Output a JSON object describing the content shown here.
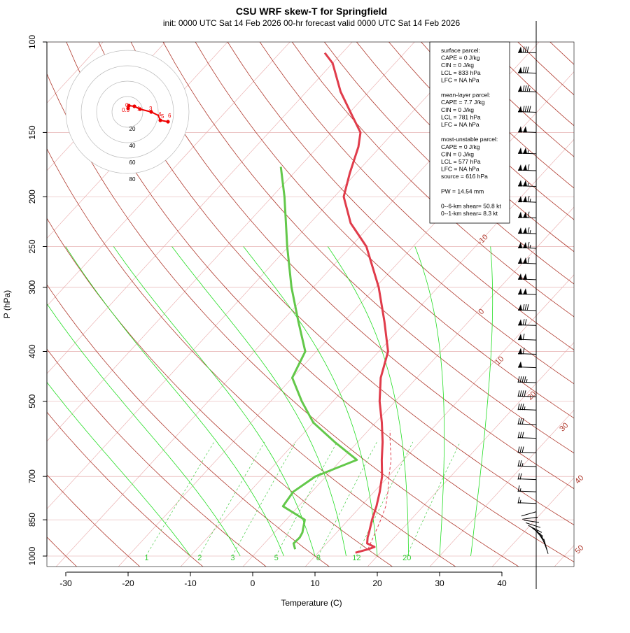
{
  "title": "CSU WRF skew-T for Springfield",
  "subtitle": "init: 0000 UTC Sat 14 Feb 2026     00-hr forecast valid 0000 UTC Sat 14 Feb 2026",
  "chart_data": {
    "type": "skew-t",
    "xlabel": "Temperature (C)",
    "ylabel": "P (hPa)",
    "xlim": [
      -33,
      44
    ],
    "ylim": [
      1000,
      100
    ],
    "y_scale": "log",
    "x_ticks": [
      "-30",
      "-20",
      "-10",
      "0",
      "10",
      "20",
      "30",
      "40"
    ],
    "y_ticks": [
      "100",
      "150",
      "200",
      "250",
      "300",
      "400",
      "500",
      "700",
      "850",
      "1000"
    ],
    "isotherm_labels": [
      "-10",
      "0",
      "10",
      "20",
      "30",
      "40",
      "50"
    ],
    "mixing_ratio_labels": [
      "1",
      "2",
      "3",
      "5",
      "8",
      "12",
      "20"
    ],
    "colors": {
      "temperature": "#e03c4b",
      "dewpoint": "#63c84a",
      "dry_adiabat": "#b03a2e",
      "isotherm": "#e8a8a8",
      "isobar": "#e0a0a0",
      "moist_adiabat": "#22dd22",
      "mixing_ratio": "#44cc44",
      "parcel": "#e03c4b",
      "hodograph": "#ee0000"
    },
    "series": [
      {
        "points": [
          {
            "p": 985,
            "t": 16.0
          },
          {
            "p": 970,
            "t": 17.5
          },
          {
            "p": 960,
            "t": 18.2
          },
          {
            "p": 945,
            "t": 16.5
          },
          {
            "p": 920,
            "t": 15.7
          },
          {
            "p": 900,
            "t": 15.2
          },
          {
            "p": 850,
            "t": 13.8
          },
          {
            "p": 800,
            "t": 12.5
          },
          {
            "p": 750,
            "t": 10.9
          },
          {
            "p": 700,
            "t": 9.0
          },
          {
            "p": 650,
            "t": 6.5
          },
          {
            "p": 600,
            "t": 4.0
          },
          {
            "p": 550,
            "t": 1.0
          },
          {
            "p": 500,
            "t": -2.5
          },
          {
            "p": 450,
            "t": -5.8
          },
          {
            "p": 400,
            "t": -8.5
          },
          {
            "p": 350,
            "t": -13.5
          },
          {
            "p": 300,
            "t": -19.5
          },
          {
            "p": 250,
            "t": -27.5
          },
          {
            "p": 225,
            "t": -33.5
          },
          {
            "p": 200,
            "t": -38.5
          },
          {
            "p": 180,
            "t": -41.0
          },
          {
            "p": 160,
            "t": -43.5
          },
          {
            "p": 150,
            "t": -45.3
          },
          {
            "p": 140,
            "t": -48.8
          },
          {
            "p": 125,
            "t": -54.5
          },
          {
            "p": 110,
            "t": -60.0
          },
          {
            "p": 105,
            "t": -62.8
          }
        ]
      },
      {
        "points": [
          {
            "p": 970,
            "t": 5.8
          },
          {
            "p": 945,
            "t": 4.7
          },
          {
            "p": 920,
            "t": 4.8
          },
          {
            "p": 900,
            "t": 4.5
          },
          {
            "p": 850,
            "t": 3.0
          },
          {
            "p": 800,
            "t": -2.5
          },
          {
            "p": 750,
            "t": -3.0
          },
          {
            "p": 700,
            "t": -1.7
          },
          {
            "p": 650,
            "t": 2.5
          },
          {
            "p": 600,
            "t": -3.7
          },
          {
            "p": 550,
            "t": -10.0
          },
          {
            "p": 500,
            "t": -15.0
          },
          {
            "p": 450,
            "t": -20.0
          },
          {
            "p": 400,
            "t": -21.8
          },
          {
            "p": 350,
            "t": -27.3
          },
          {
            "p": 300,
            "t": -33.5
          },
          {
            "p": 250,
            "t": -40.2
          },
          {
            "p": 200,
            "t": -48.0
          },
          {
            "p": 175,
            "t": -53.0
          }
        ]
      }
    ],
    "parcel_path": [
      {
        "p": 970,
        "t": 17.5
      },
      {
        "p": 900,
        "t": 16.2
      },
      {
        "p": 850,
        "t": 15.2
      },
      {
        "p": 800,
        "t": 14.0
      },
      {
        "p": 750,
        "t": 12.2
      },
      {
        "p": 700,
        "t": 10.1
      },
      {
        "p": 650,
        "t": 8.0
      },
      {
        "p": 600,
        "t": 5.2
      },
      {
        "p": 570,
        "t": 3.5
      }
    ],
    "wind_barbs": [
      {
        "p": 105,
        "spd": 80
      },
      {
        "p": 115,
        "spd": 80
      },
      {
        "p": 125,
        "spd": 85
      },
      {
        "p": 137,
        "spd": 90
      },
      {
        "p": 150,
        "spd": 100
      },
      {
        "p": 165,
        "spd": 105
      },
      {
        "p": 178,
        "spd": 110
      },
      {
        "p": 191,
        "spd": 105
      },
      {
        "p": 205,
        "spd": 115
      },
      {
        "p": 220,
        "spd": 110
      },
      {
        "p": 236,
        "spd": 115
      },
      {
        "p": 252,
        "spd": 115
      },
      {
        "p": 270,
        "spd": 110
      },
      {
        "p": 290,
        "spd": 100
      },
      {
        "p": 310,
        "spd": 100
      },
      {
        "p": 333,
        "spd": 80
      },
      {
        "p": 356,
        "spd": 70
      },
      {
        "p": 380,
        "spd": 60
      },
      {
        "p": 405,
        "spd": 60
      },
      {
        "p": 430,
        "spd": 50
      },
      {
        "p": 460,
        "spd": 45
      },
      {
        "p": 490,
        "spd": 40
      },
      {
        "p": 520,
        "spd": 35
      },
      {
        "p": 555,
        "spd": 30
      },
      {
        "p": 590,
        "spd": 30
      },
      {
        "p": 630,
        "spd": 30
      },
      {
        "p": 670,
        "spd": 25
      },
      {
        "p": 710,
        "spd": 20
      },
      {
        "p": 750,
        "spd": 15
      },
      {
        "p": 790,
        "spd": 15
      }
    ],
    "hodograph": {
      "rings": [
        "20",
        "40",
        "60",
        "80"
      ],
      "point_labels": [
        "0",
        "0.5",
        "1",
        "3",
        "4",
        "5",
        "6"
      ]
    }
  },
  "parcel_box": {
    "lines": [
      "surface parcel:",
      "CAPE = 0 J/kg",
      "CIN = 0 J/kg",
      "LCL = 833 hPa",
      "LFC = NA hPa",
      "",
      "mean-layer parcel:",
      "CAPE = 7.7 J/kg",
      "CIN = 0 J/kg",
      "LCL = 781 hPa",
      "LFC = NA hPa",
      "",
      "most-unstable parcel:",
      "CAPE = 0 J/kg",
      "CIN = 0 J/kg",
      "LCL = 577 hPa",
      "LFC = NA hPa",
      "source = 616 hPa",
      "",
      "PW =  14.54 mm",
      "",
      "0--6-km shear= 50.8 kt",
      "0--1-km shear= 8.3 kt"
    ]
  }
}
